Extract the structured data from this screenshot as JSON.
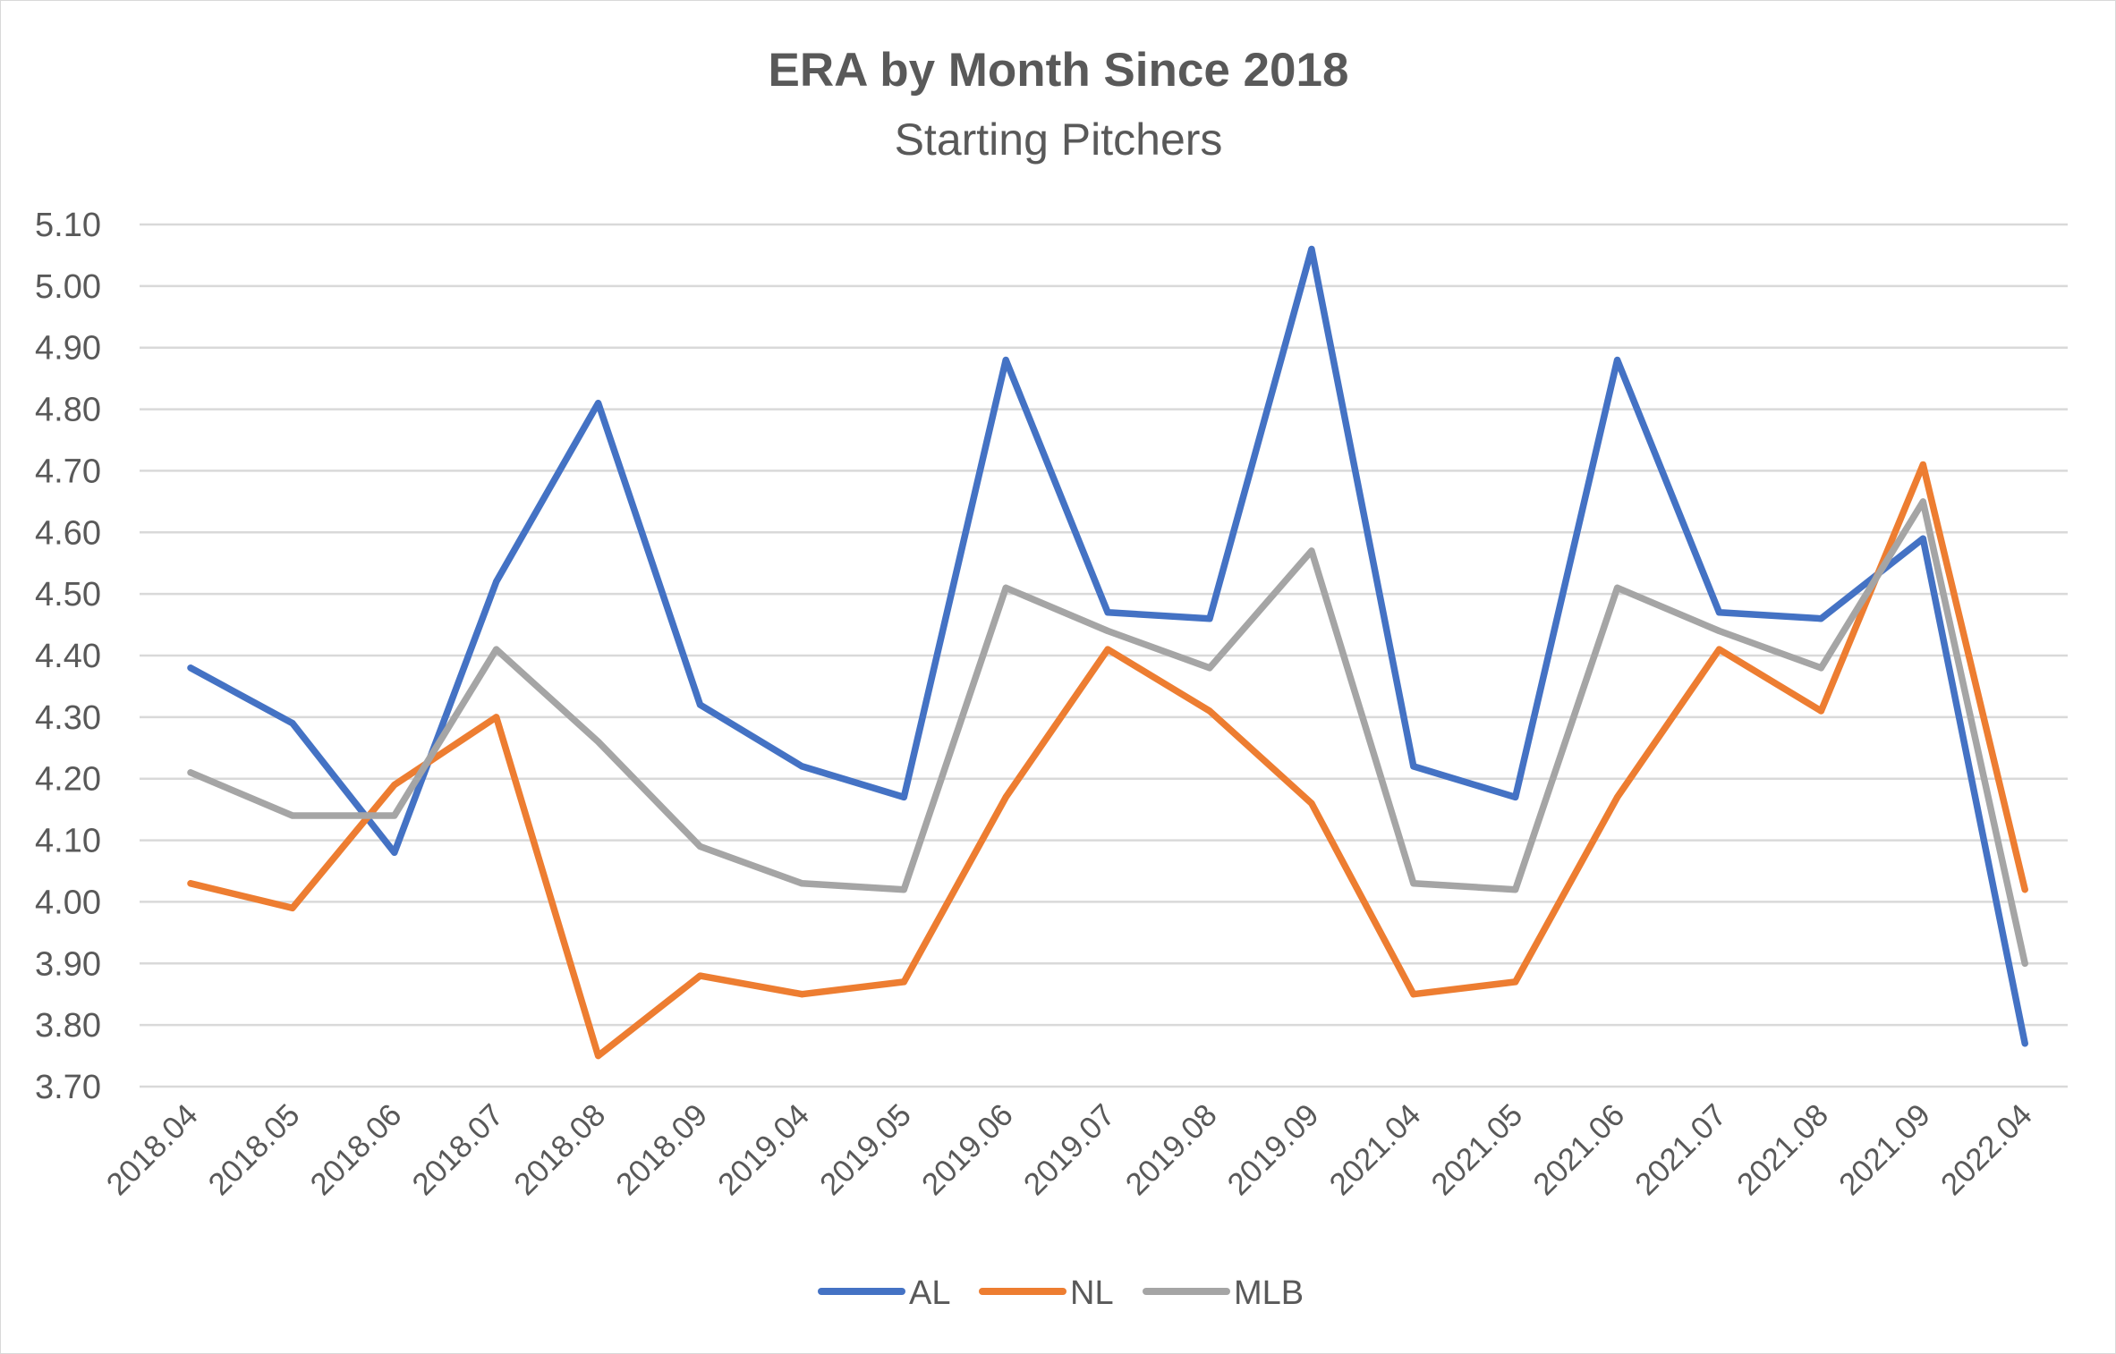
{
  "chart_data": {
    "type": "line",
    "title": "ERA by Month Since 2018",
    "subtitle": "Starting Pitchers",
    "xlabel": "",
    "ylabel": "",
    "categories": [
      "2018.04",
      "2018.05",
      "2018.06",
      "2018.07",
      "2018.08",
      "2018.09",
      "2019.04",
      "2019.05",
      "2019.06",
      "2019.07",
      "2019.08",
      "2019.09",
      "2021.04",
      "2021.05",
      "2021.06",
      "2021.07",
      "2021.08",
      "2021.09",
      "2022.04"
    ],
    "ylim": [
      3.7,
      5.1
    ],
    "yticks": [
      "3.70",
      "3.80",
      "3.90",
      "4.00",
      "4.10",
      "4.20",
      "4.30",
      "4.40",
      "4.50",
      "4.60",
      "4.70",
      "4.80",
      "4.90",
      "5.00",
      "5.10"
    ],
    "grid": true,
    "legend_position": "bottom",
    "series": [
      {
        "name": "AL",
        "color": "#4472C4",
        "values": [
          4.38,
          4.29,
          4.08,
          4.52,
          4.81,
          4.32,
          4.22,
          4.17,
          4.88,
          4.47,
          4.46,
          5.06,
          4.22,
          4.17,
          4.88,
          4.47,
          4.46,
          4.59,
          3.77
        ]
      },
      {
        "name": "NL",
        "color": "#ED7D31",
        "values": [
          4.03,
          3.99,
          4.19,
          4.3,
          3.75,
          3.88,
          3.85,
          3.87,
          4.17,
          4.41,
          4.31,
          4.16,
          3.85,
          3.87,
          4.17,
          4.41,
          4.31,
          4.71,
          4.02
        ]
      },
      {
        "name": "MLB",
        "color": "#A5A5A5",
        "values": [
          4.21,
          4.14,
          4.14,
          4.41,
          4.26,
          4.09,
          4.03,
          4.02,
          4.51,
          4.44,
          4.38,
          4.57,
          4.03,
          4.02,
          4.51,
          4.44,
          4.38,
          4.65,
          3.9
        ]
      }
    ]
  }
}
